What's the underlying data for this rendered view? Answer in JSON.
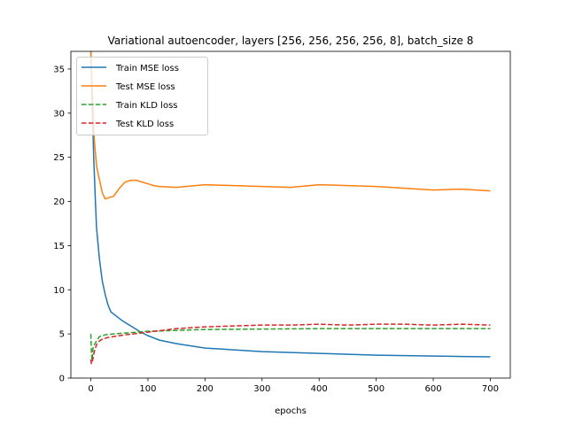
{
  "chart_data": {
    "type": "line",
    "title": "Variational autoencoder, layers [256, 256, 256, 256, 8], batch_size 8",
    "xlabel": "epochs",
    "ylabel": "",
    "xlim": [
      -35,
      735
    ],
    "ylim": [
      0,
      37
    ],
    "xticks": [
      0,
      100,
      200,
      300,
      400,
      500,
      600,
      700
    ],
    "yticks": [
      0,
      5,
      10,
      15,
      20,
      25,
      30,
      35
    ],
    "grid": false,
    "legend_position": "top-left",
    "series": [
      {
        "name": "Train MSE loss",
        "color": "#1f77b4",
        "style": "solid",
        "points": [
          [
            0,
            37
          ],
          [
            2,
            32
          ],
          [
            5,
            25
          ],
          [
            8,
            20
          ],
          [
            10,
            17
          ],
          [
            15,
            13.5
          ],
          [
            20,
            11
          ],
          [
            25,
            9.5
          ],
          [
            30,
            8.3
          ],
          [
            35,
            7.5
          ],
          [
            45,
            7.0
          ],
          [
            55,
            6.5
          ],
          [
            70,
            5.9
          ],
          [
            85,
            5.3
          ],
          [
            100,
            4.8
          ],
          [
            120,
            4.3
          ],
          [
            150,
            3.9
          ],
          [
            200,
            3.4
          ],
          [
            250,
            3.2
          ],
          [
            300,
            3.0
          ],
          [
            350,
            2.9
          ],
          [
            400,
            2.8
          ],
          [
            450,
            2.7
          ],
          [
            500,
            2.6
          ],
          [
            550,
            2.55
          ],
          [
            600,
            2.5
          ],
          [
            650,
            2.45
          ],
          [
            700,
            2.4
          ]
        ]
      },
      {
        "name": "Test MSE loss",
        "color": "#ff7f0e",
        "style": "solid",
        "points": [
          [
            0,
            37
          ],
          [
            3,
            32
          ],
          [
            6,
            27
          ],
          [
            10,
            24
          ],
          [
            15,
            22.5
          ],
          [
            20,
            21
          ],
          [
            25,
            20.3
          ],
          [
            30,
            20.4
          ],
          [
            35,
            20.5
          ],
          [
            40,
            20.6
          ],
          [
            50,
            21.5
          ],
          [
            60,
            22.2
          ],
          [
            70,
            22.4
          ],
          [
            80,
            22.4
          ],
          [
            90,
            22.2
          ],
          [
            100,
            22.0
          ],
          [
            110,
            21.8
          ],
          [
            120,
            21.7
          ],
          [
            150,
            21.6
          ],
          [
            200,
            21.9
          ],
          [
            250,
            21.8
          ],
          [
            300,
            21.7
          ],
          [
            350,
            21.6
          ],
          [
            400,
            21.9
          ],
          [
            450,
            21.8
          ],
          [
            500,
            21.7
          ],
          [
            550,
            21.5
          ],
          [
            600,
            21.3
          ],
          [
            650,
            21.4
          ],
          [
            700,
            21.2
          ]
        ]
      },
      {
        "name": "Train KLD loss",
        "color": "#2ca02c",
        "style": "dashed",
        "points": [
          [
            0,
            5.0
          ],
          [
            1,
            3.0
          ],
          [
            2,
            2.0
          ],
          [
            4,
            3.5
          ],
          [
            8,
            4.0
          ],
          [
            15,
            4.7
          ],
          [
            25,
            4.9
          ],
          [
            40,
            5.0
          ],
          [
            60,
            5.1
          ],
          [
            80,
            5.2
          ],
          [
            100,
            5.3
          ],
          [
            150,
            5.4
          ],
          [
            200,
            5.5
          ],
          [
            300,
            5.55
          ],
          [
            400,
            5.6
          ],
          [
            500,
            5.6
          ],
          [
            600,
            5.6
          ],
          [
            700,
            5.6
          ]
        ]
      },
      {
        "name": "Test KLD loss",
        "color": "#d62728",
        "style": "dashed",
        "points": [
          [
            0,
            2.1
          ],
          [
            1,
            1.6
          ],
          [
            3,
            2.0
          ],
          [
            6,
            3.0
          ],
          [
            10,
            3.8
          ],
          [
            15,
            4.2
          ],
          [
            20,
            4.4
          ],
          [
            30,
            4.6
          ],
          [
            40,
            4.7
          ],
          [
            50,
            4.8
          ],
          [
            60,
            4.9
          ],
          [
            75,
            5.0
          ],
          [
            100,
            5.2
          ],
          [
            125,
            5.4
          ],
          [
            150,
            5.6
          ],
          [
            200,
            5.8
          ],
          [
            250,
            5.9
          ],
          [
            300,
            6.0
          ],
          [
            350,
            6.0
          ],
          [
            400,
            6.1
          ],
          [
            450,
            6.0
          ],
          [
            500,
            6.1
          ],
          [
            550,
            6.1
          ],
          [
            600,
            6.0
          ],
          [
            650,
            6.1
          ],
          [
            700,
            6.0
          ]
        ]
      }
    ]
  }
}
